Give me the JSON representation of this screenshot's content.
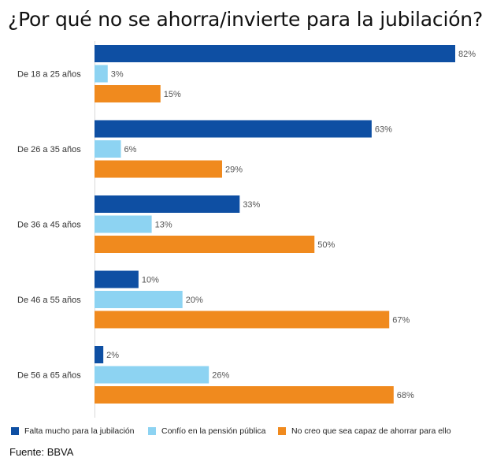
{
  "title": "¿Por qué no se ahorra/invierte para la jubilación?",
  "source": "Fuente: BBVA",
  "colors": {
    "series1": "#0E4FA3",
    "series2": "#8DD3F2",
    "series3": "#F08A1E"
  },
  "chart_data": {
    "type": "bar",
    "orientation": "horizontal",
    "title": "¿Por qué no se ahorra/invierte para la jubilación?",
    "categories": [
      "De 18 a 25 años",
      "De 26 a 35 años",
      "De 36 a 45 años",
      "De 46 a 55 años",
      "De 56 a 65 años"
    ],
    "series": [
      {
        "name": "Falta mucho para la jubilación",
        "values": [
          82,
          63,
          33,
          10,
          2
        ]
      },
      {
        "name": "Confío en la pensión pública",
        "values": [
          3,
          6,
          13,
          20,
          26
        ]
      },
      {
        "name": "No creo que sea capaz de ahorrar para ello",
        "values": [
          15,
          29,
          50,
          67,
          68
        ]
      }
    ],
    "value_format": "{v}%",
    "xlim": [
      0,
      82
    ],
    "grid": false,
    "legend_position": "bottom"
  }
}
